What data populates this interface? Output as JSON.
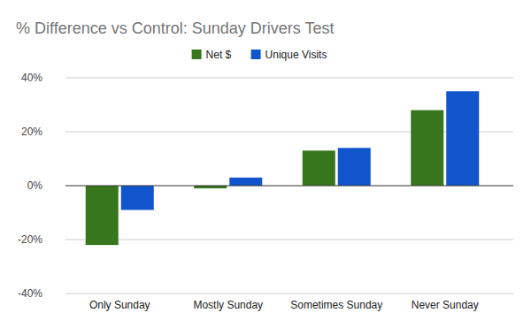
{
  "chart_data": {
    "type": "bar",
    "title": "% Difference vs Control: Sunday Drivers Test",
    "categories": [
      "Only Sunday",
      "Mostly Sunday",
      "Sometimes Sunday",
      "Never Sunday"
    ],
    "series": [
      {
        "name": "Net $",
        "color": "#38761d",
        "values": [
          -22,
          -1,
          13,
          28
        ]
      },
      {
        "name": "Unique Visits",
        "color": "#1155cc",
        "values": [
          -9,
          3,
          14,
          35
        ]
      }
    ],
    "ylim": [
      -40,
      40
    ],
    "yticks": [
      {
        "value": -40,
        "label": "-40%"
      },
      {
        "value": -20,
        "label": "-20%"
      },
      {
        "value": 0,
        "label": "0%"
      },
      {
        "value": 20,
        "label": "20%"
      },
      {
        "value": 40,
        "label": "40%"
      }
    ],
    "grid": true,
    "legend": "top"
  }
}
